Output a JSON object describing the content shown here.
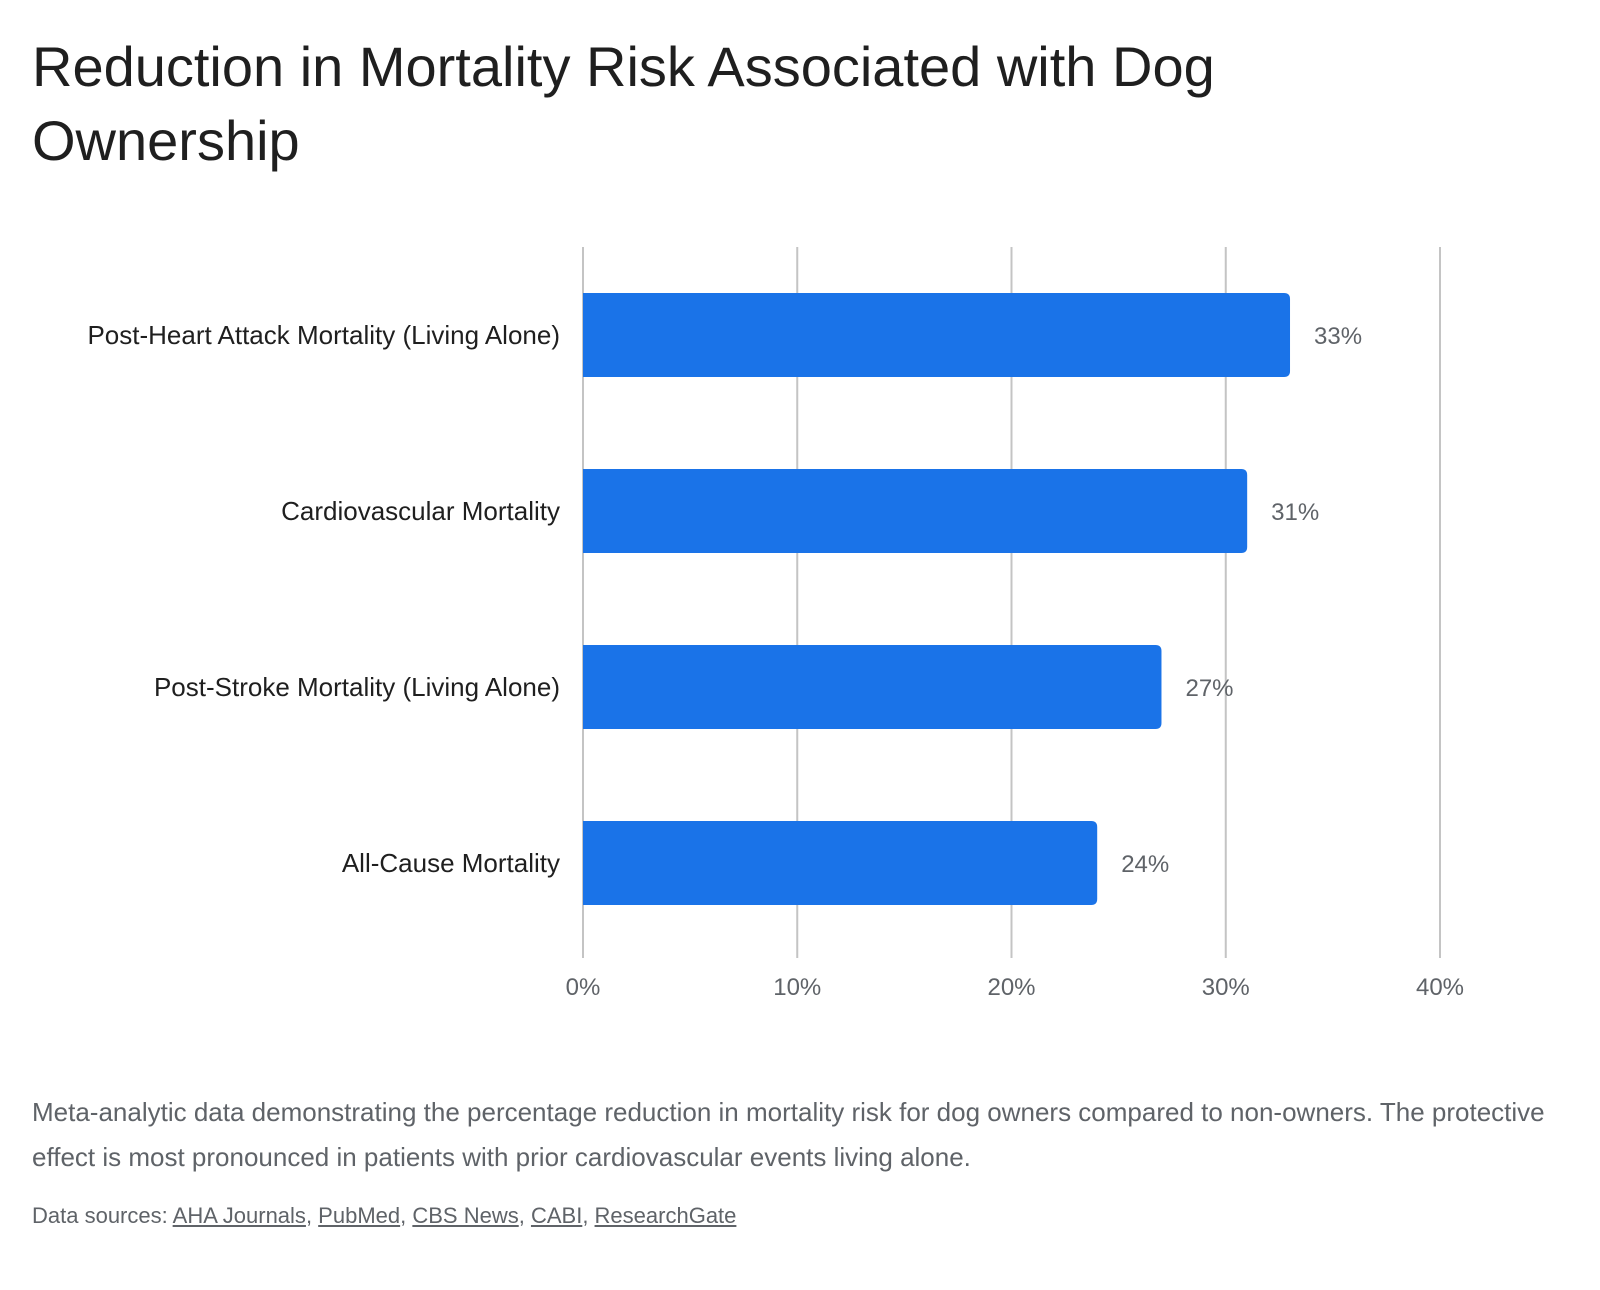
{
  "chart_data": {
    "type": "bar",
    "orientation": "horizontal",
    "title": "Reduction in Mortality Risk Associated with Dog Ownership",
    "categories": [
      "Post-Heart Attack Mortality (Living Alone)",
      "Cardiovascular Mortality",
      "Post-Stroke Mortality (Living Alone)",
      "All-Cause Mortality"
    ],
    "values": [
      33,
      31,
      27,
      24
    ],
    "data_labels": [
      "33%",
      "31%",
      "27%",
      "24%"
    ],
    "xlim": [
      0,
      40
    ],
    "x_ticks": [
      0,
      10,
      20,
      30,
      40
    ],
    "x_tick_labels": [
      "0%",
      "10%",
      "20%",
      "30%",
      "40%"
    ],
    "xlabel": "",
    "ylabel": "",
    "grid": "vertical",
    "legend": "none",
    "bar_color": "#1a73e8"
  },
  "caption": "Meta-analytic data demonstrating the percentage reduction in mortality risk for dog owners compared to non-owners. The protective effect is most pronounced in patients with prior cardiovascular events living alone.",
  "sources": {
    "prefix": "Data sources: ",
    "links": [
      "AHA Journals",
      "PubMed",
      "CBS News",
      "CABI",
      "ResearchGate"
    ]
  },
  "colors": {
    "bar": "#1a73e8",
    "grid": "#c4c4c4",
    "text": "#1f1f1f",
    "muted": "#5f6368"
  }
}
